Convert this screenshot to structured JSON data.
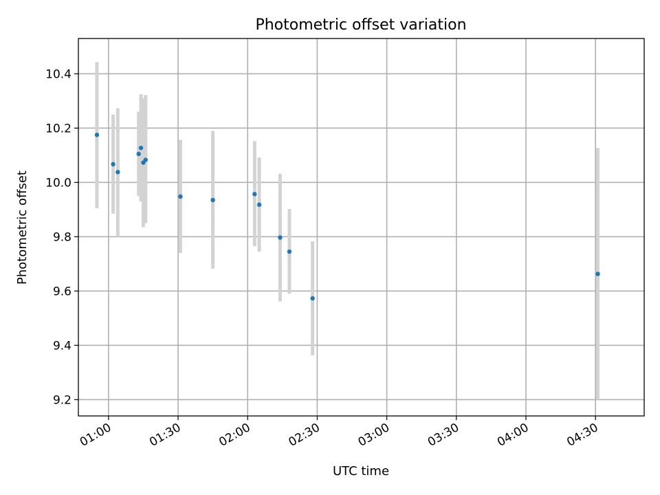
{
  "chart_data": {
    "type": "scatter",
    "title": "Photometric offset variation",
    "xlabel": "UTC time",
    "ylabel": "Photometric offset",
    "grid": true,
    "xlim": [
      "00:47",
      "04:51"
    ],
    "ylim": [
      9.14,
      10.53
    ],
    "x_ticks": [
      "01:00",
      "01:30",
      "02:00",
      "02:30",
      "03:00",
      "03:30",
      "04:00",
      "04:30"
    ],
    "y_ticks": [
      9.2,
      9.4,
      9.6,
      9.8,
      10.0,
      10.2,
      10.4
    ],
    "colors": {
      "points": "#1f77b4",
      "errorbars": "#d3d3d3"
    },
    "series": [
      {
        "x": [
          "00:55",
          "01:02",
          "01:04",
          "01:13",
          "01:14",
          "01:15",
          "01:16",
          "01:31",
          "01:45",
          "02:03",
          "02:05",
          "02:14",
          "02:18",
          "02:28",
          "04:31"
        ],
        "y": [
          10.175,
          10.067,
          10.038,
          10.105,
          10.127,
          10.073,
          10.083,
          9.948,
          9.935,
          9.957,
          9.918,
          9.797,
          9.745,
          9.573,
          9.663
        ],
        "yerr_low": [
          9.905,
          9.885,
          9.8,
          9.95,
          9.93,
          9.835,
          9.85,
          9.74,
          9.682,
          9.765,
          9.745,
          9.562,
          9.59,
          9.363,
          9.2
        ],
        "yerr_high": [
          10.443,
          10.25,
          10.273,
          10.26,
          10.325,
          10.31,
          10.322,
          10.157,
          10.19,
          10.152,
          10.092,
          10.032,
          9.902,
          9.783,
          10.127
        ]
      }
    ]
  }
}
